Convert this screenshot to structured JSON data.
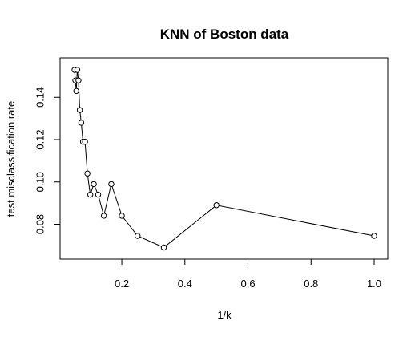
{
  "chart_data": {
    "type": "line",
    "title": "KNN of Boston data",
    "xlabel": "1/k",
    "ylabel": "test misclassification rate",
    "xlim": [
      0.04,
      1.0
    ],
    "ylim": [
      0.066,
      0.156
    ],
    "xticks": [
      0.2,
      0.4,
      0.6,
      0.8,
      1.0
    ],
    "xtick_labels": [
      "0.2",
      "0.4",
      "0.6",
      "0.8",
      "1.0"
    ],
    "yticks": [
      0.08,
      0.1,
      0.12,
      0.14
    ],
    "ytick_labels": [
      "0.08",
      "0.10",
      "0.12",
      "0.14"
    ],
    "grid": false,
    "marker": "open-circle",
    "series": [
      {
        "x": [
          0.05,
          0.0526,
          0.0556,
          0.0588,
          0.0625,
          0.0667,
          0.0714,
          0.0769,
          0.0833,
          0.0909,
          0.1,
          0.1111,
          0.125,
          0.1429,
          0.1667,
          0.2,
          0.25,
          0.3333,
          0.5,
          1.0
        ],
        "y": [
          0.153,
          0.148,
          0.143,
          0.153,
          0.148,
          0.134,
          0.128,
          0.119,
          0.119,
          0.104,
          0.094,
          0.099,
          0.094,
          0.084,
          0.099,
          0.084,
          0.0745,
          0.069,
          0.089,
          0.0745
        ]
      }
    ]
  }
}
